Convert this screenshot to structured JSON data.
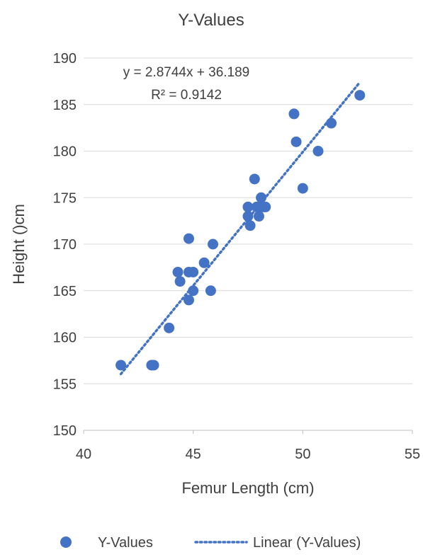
{
  "chart_data": {
    "type": "scatter",
    "title": "Y-Values",
    "xlabel": "Femur Length (cm)",
    "ylabel": "Height ()cm",
    "xlim": [
      40,
      55
    ],
    "ylim": [
      150,
      190
    ],
    "x_ticks": [
      40,
      45,
      50,
      55
    ],
    "y_ticks": [
      150,
      155,
      160,
      165,
      170,
      175,
      180,
      185,
      190
    ],
    "grid": "horizontal",
    "legend_position": "bottom",
    "series": [
      {
        "name": "Y-Values",
        "type": "scatter",
        "color": "#4472c4",
        "points": [
          [
            41.7,
            157
          ],
          [
            43.1,
            157
          ],
          [
            43.2,
            157
          ],
          [
            43.9,
            161
          ],
          [
            44.3,
            167
          ],
          [
            44.4,
            166
          ],
          [
            44.8,
            170.6
          ],
          [
            44.8,
            167
          ],
          [
            44.8,
            164
          ],
          [
            45.0,
            167
          ],
          [
            45.0,
            165
          ],
          [
            45.5,
            168
          ],
          [
            45.8,
            165
          ],
          [
            45.9,
            170
          ],
          [
            47.5,
            174
          ],
          [
            47.5,
            173
          ],
          [
            47.6,
            172
          ],
          [
            47.8,
            177
          ],
          [
            47.9,
            174
          ],
          [
            48.0,
            173
          ],
          [
            48.1,
            175
          ],
          [
            48.2,
            174
          ],
          [
            48.3,
            174
          ],
          [
            49.6,
            184
          ],
          [
            49.7,
            181
          ],
          [
            50.0,
            176
          ],
          [
            50.7,
            180
          ],
          [
            51.3,
            183
          ],
          [
            52.6,
            186
          ]
        ]
      },
      {
        "name": "Linear (Y-Values)",
        "type": "trendline",
        "color": "#4472c4",
        "slope": 2.8744,
        "intercept": 36.189,
        "x_range": [
          41.7,
          52.6
        ]
      }
    ],
    "annotations": {
      "equation": "y = 2.8744x + 36.189",
      "r_squared": "R² = 0.9142"
    }
  }
}
